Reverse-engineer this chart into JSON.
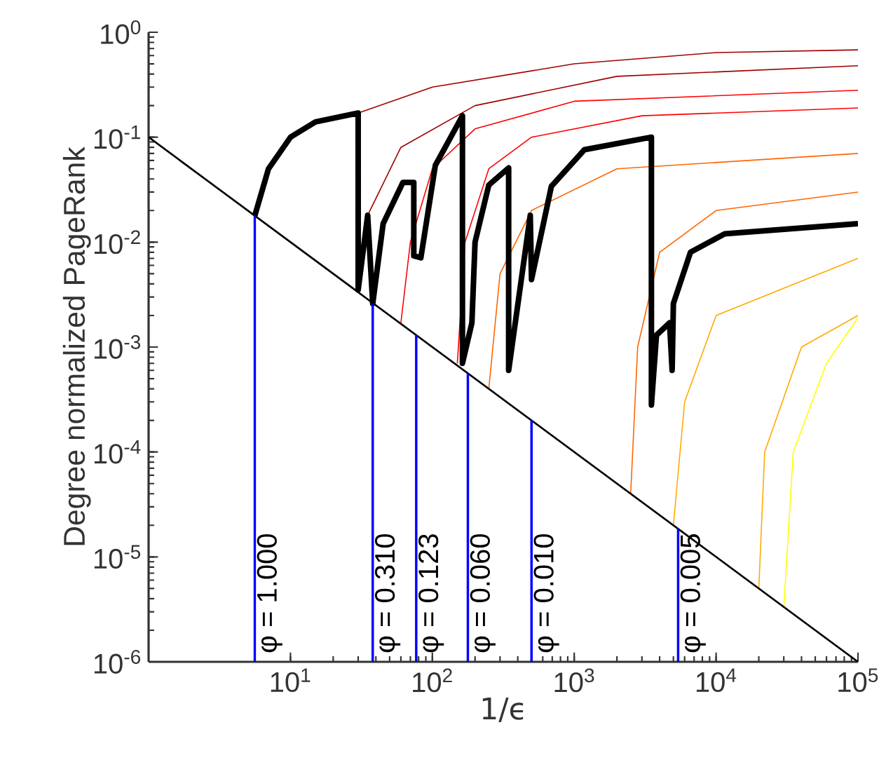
{
  "chart_data": {
    "type": "line",
    "xlabel": "1/ϵ",
    "ylabel": "Degree normalized PageRank",
    "log": "xy",
    "grid": false,
    "marker": "none",
    "xlim": [
      1,
      100000
    ],
    "ylim": [
      1e-06,
      1
    ],
    "xticks": [
      {
        "value": 10,
        "label": "10$^{1}$"
      },
      {
        "value": 100,
        "label": "10$^{2}$"
      },
      {
        "value": 1000,
        "label": "10$^{3}$"
      },
      {
        "value": 10000,
        "label": "10$^{4}$"
      },
      {
        "value": 100000,
        "label": "10$^{5}$"
      }
    ],
    "yticks": [
      {
        "value": 1e-06,
        "label": "10$^{-6}$"
      },
      {
        "value": 1e-05,
        "label": "10$^{-5}$"
      },
      {
        "value": 0.0001,
        "label": "10$^{-4}$"
      },
      {
        "value": 0.001,
        "label": "10$^{-3}$"
      },
      {
        "value": 0.01,
        "label": "10$^{-2}$"
      },
      {
        "value": 0.1,
        "label": "10$^{-1}$"
      },
      {
        "value": 1,
        "label": "10$^{0}$"
      }
    ],
    "series": [
      {
        "color": "#a00000",
        "x": [
          30,
          100,
          1000,
          10000,
          100000
        ],
        "values": [
          0.17,
          0.3,
          0.5,
          0.64,
          0.68
        ]
      },
      {
        "color": "#a00000",
        "x": [
          35,
          60,
          200,
          2000,
          100000
        ],
        "values": [
          0.018,
          0.08,
          0.2,
          0.38,
          0.48
        ]
      },
      {
        "color": "#ff0000",
        "x": [
          60,
          70,
          100,
          200,
          1000,
          100000
        ],
        "values": [
          0.0017,
          0.01,
          0.05,
          0.12,
          0.22,
          0.28
        ]
      },
      {
        "color": "#ff0000",
        "x": [
          150,
          170,
          250,
          500,
          3000,
          100000
        ],
        "values": [
          0.0007,
          0.01,
          0.05,
          0.1,
          0.16,
          0.19
        ]
      },
      {
        "color": "#ff6600",
        "x": [
          250,
          300,
          500,
          2000,
          100000
        ],
        "values": [
          0.0004,
          0.005,
          0.02,
          0.05,
          0.07
        ]
      },
      {
        "color": "#ff6600",
        "x": [
          2500,
          2800,
          4000,
          10000,
          100000
        ],
        "values": [
          4e-05,
          0.001,
          0.008,
          0.02,
          0.03
        ]
      },
      {
        "color": "#ffaa00",
        "x": [
          5000,
          6000,
          10000,
          100000
        ],
        "values": [
          2e-05,
          0.0003,
          0.002,
          0.007
        ]
      },
      {
        "color": "#ffaa00",
        "x": [
          20000,
          22000,
          40000,
          100000
        ],
        "values": [
          5e-06,
          0.0001,
          0.001,
          0.002
        ]
      },
      {
        "color": "#ffff00",
        "x": [
          30000,
          35000,
          60000,
          100000
        ],
        "values": [
          3.3e-06,
          0.0001,
          0.0007,
          0.0019
        ]
      },
      {
        "color": "#000000",
        "x": [
          5.6,
          7,
          10,
          15,
          30,
          30,
          35,
          38,
          45,
          62,
          74,
          74,
          83,
          105,
          163,
          163,
          190,
          200,
          250,
          345,
          345,
          490,
          500,
          690,
          1180,
          3500,
          3500,
          3800,
          4700,
          4900,
          5000,
          6600,
          11500,
          100000
        ],
        "values": [
          0.0178,
          0.05,
          0.1,
          0.14,
          0.17,
          0.0035,
          0.018,
          0.0026,
          0.015,
          0.037,
          0.037,
          0.0074,
          0.0071,
          0.054,
          0.16,
          0.0007,
          0.0017,
          0.01,
          0.035,
          0.051,
          0.0006,
          0.018,
          0.0044,
          0.034,
          0.076,
          0.1,
          0.00028,
          0.0013,
          0.0017,
          0.0006,
          0.0026,
          0.008,
          0.012,
          0.015
        ]
      },
      {
        "color": "#000000",
        "x": [
          1,
          100000
        ],
        "values": [
          0.1,
          1e-06
        ]
      },
      {
        "color": "#0000ff",
        "x": [
          5.6,
          5.6
        ],
        "values": [
          1e-06,
          0.0178
        ]
      },
      {
        "color": "#0000ff",
        "x": [
          38,
          38
        ],
        "values": [
          1e-06,
          0.0026
        ]
      },
      {
        "color": "#0000ff",
        "x": [
          77,
          77
        ],
        "values": [
          1e-06,
          0.0013
        ]
      },
      {
        "color": "#0000ff",
        "x": [
          178,
          178
        ],
        "values": [
          1e-06,
          0.00056
        ]
      },
      {
        "color": "#0000ff",
        "x": [
          500,
          500
        ],
        "values": [
          1e-06,
          0.0002
        ]
      },
      {
        "color": "#0000ff",
        "x": [
          5400,
          5400
        ],
        "values": [
          1e-06,
          1.85e-05
        ]
      }
    ],
    "annotations": [
      {
        "text": "φ = 1.000",
        "x": 5.6,
        "y": 1.1e-06
      },
      {
        "text": "φ = 0.310",
        "x": 38,
        "y": 1.1e-06
      },
      {
        "text": "φ = 0.123",
        "x": 77,
        "y": 1.1e-06
      },
      {
        "text": "φ = 0.060",
        "x": 178,
        "y": 1.1e-06
      },
      {
        "text": "φ = 0.010",
        "x": 500,
        "y": 1.1e-06
      },
      {
        "text": "φ = 0.005",
        "x": 5400,
        "y": 1.1e-06
      }
    ]
  }
}
